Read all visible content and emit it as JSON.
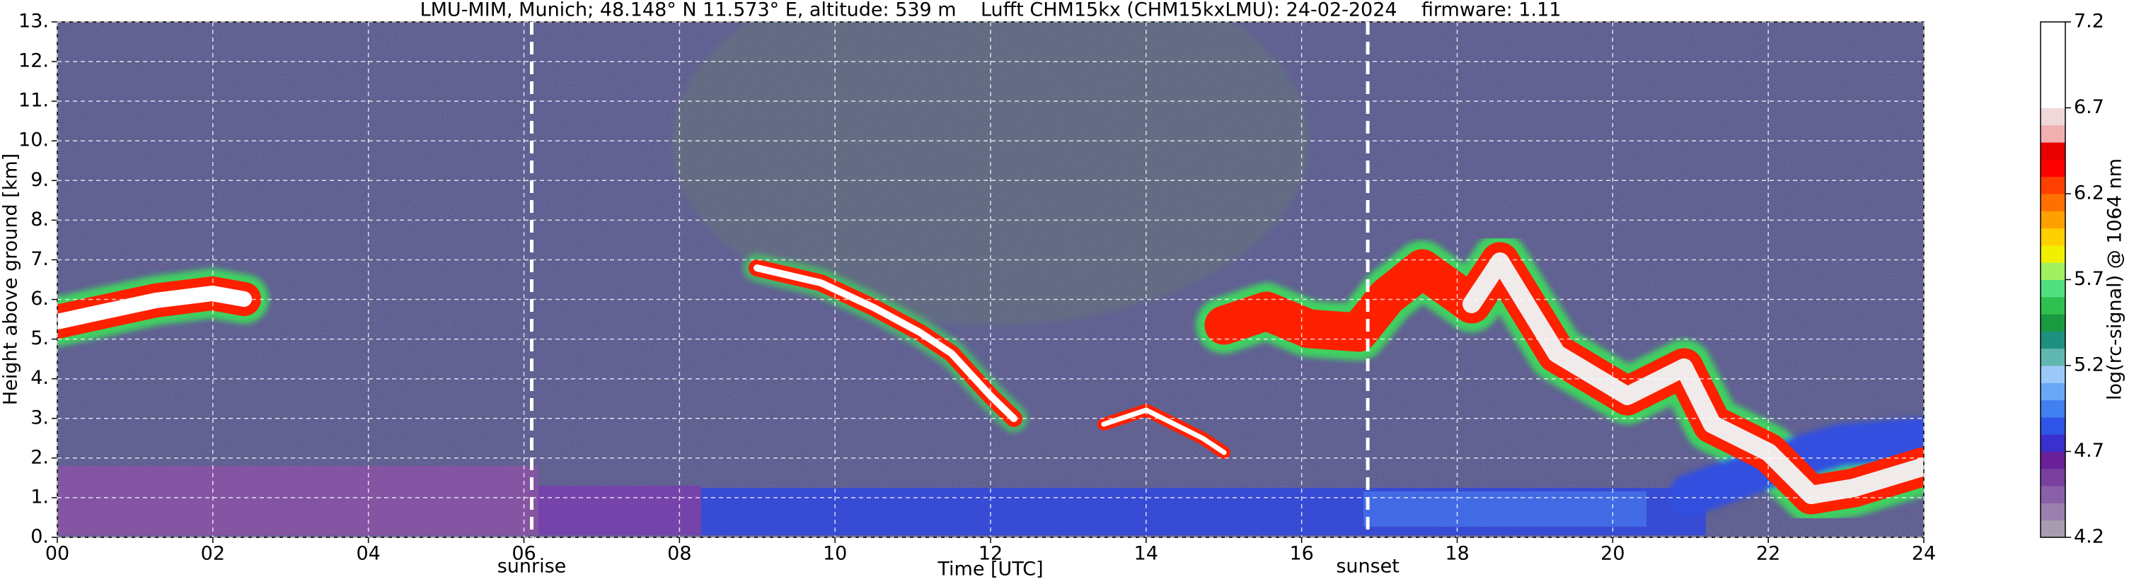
{
  "chart_data": {
    "type": "heatmap",
    "title": "LMU-MIM, Munich; 48.148° N 11.573° E, altitude: 539 m    Lufft CHM15kx (CHM15kxLMU): 24-02-2024    firmware: 1.11",
    "x_label": "Time [UTC]",
    "y_label": "Height above ground [km]",
    "xlim": [
      0,
      24
    ],
    "xticks": [
      {
        "value": 0,
        "label": "00"
      },
      {
        "value": 2,
        "label": "02"
      },
      {
        "value": 4,
        "label": "04"
      },
      {
        "value": 6,
        "label": "06"
      },
      {
        "value": 8,
        "label": "08"
      },
      10,
      12,
      14,
      16,
      18,
      20,
      22,
      24
    ],
    "ylim": [
      0,
      13
    ],
    "yticks": [
      {
        "value": 0,
        "label": "0."
      },
      {
        "value": 1,
        "label": "1."
      },
      {
        "value": 2,
        "label": "2."
      },
      {
        "value": 3,
        "label": "3."
      },
      {
        "value": 4,
        "label": "4."
      },
      {
        "value": 5,
        "label": "5."
      },
      {
        "value": 6,
        "label": "6."
      },
      {
        "value": 7,
        "label": "7."
      },
      {
        "value": 8,
        "label": "8."
      },
      {
        "value": 9,
        "label": "9."
      },
      {
        "value": 10,
        "label": "10."
      },
      {
        "value": 11,
        "label": "11."
      },
      {
        "value": 12,
        "label": "12."
      },
      {
        "value": 13,
        "label": "13."
      }
    ],
    "grid": true,
    "annotations": [
      {
        "x": 6.1,
        "label": "sunrise"
      },
      {
        "x": 16.85,
        "label": "sunset"
      }
    ],
    "colorbar": {
      "label": "log(rc-signal) @ 1064 nm",
      "lim": [
        4.2,
        7.2
      ],
      "ticks": [
        4.2,
        4.7,
        5.2,
        5.7,
        6.2,
        6.7,
        7.2
      ],
      "colors": [
        "#a89cb0",
        "#9a80ae",
        "#8a60a8",
        "#7a40a0",
        "#6a2098",
        "#3a30d0",
        "#2e55e8",
        "#4080f0",
        "#6aa8f5",
        "#9cc8f8",
        "#60b8b0",
        "#1e9080",
        "#1a9a40",
        "#30c050",
        "#50e080",
        "#a0f060",
        "#f0f000",
        "#ffd000",
        "#ffa000",
        "#ff7000",
        "#ff4000",
        "#ff0000",
        "#e80000",
        "#f0b0b0",
        "#f0d8d8",
        "#ffffff",
        "#ffffff",
        "#ffffff",
        "#ffffff",
        "#ffffff"
      ]
    }
  }
}
